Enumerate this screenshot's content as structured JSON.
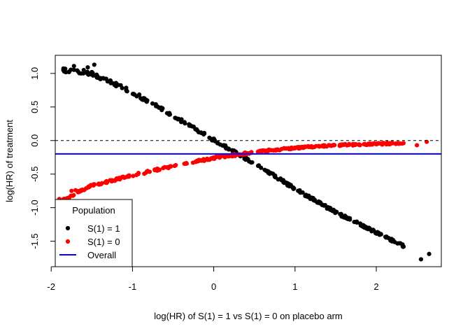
{
  "chart_data": {
    "type": "scatter",
    "title": "",
    "xlabel": "log(HR) of S(1) = 1 vs S(1) = 0 on placebo arm",
    "ylabel": "log(HR) of treatment",
    "xlim": [
      -1.95,
      2.8
    ],
    "ylim": [
      -1.88,
      1.27
    ],
    "x_ticks": [
      -2,
      -1,
      0,
      1,
      2
    ],
    "x_tick_labels": [
      "-2",
      "-1",
      "0",
      "1",
      "2"
    ],
    "y_ticks": [
      -1.5,
      -1.0,
      -0.5,
      0.0,
      0.5,
      1.0
    ],
    "y_tick_labels": [
      "-1.5",
      "-1.0",
      "-0.5",
      "0.0",
      "0.5",
      "1.0"
    ],
    "grid": false,
    "legend": {
      "title": "Population",
      "placement": "bottom-left",
      "entries": [
        "S(1) = 1",
        "S(1) = 0",
        "Overall"
      ]
    },
    "series": [
      {
        "name": "S(1) = 1",
        "color": "#000000",
        "marker": "point",
        "trend_x": [
          -1.85,
          -1.5,
          -1.0,
          -0.5,
          0.0,
          0.3,
          0.5,
          1.0,
          1.5,
          2.0,
          2.35
        ],
        "trend_y": [
          1.05,
          1.0,
          0.72,
          0.37,
          0.01,
          -0.2,
          -0.34,
          -0.72,
          -1.07,
          -1.37,
          -1.58
        ],
        "x": [
          -1.85,
          -1.78,
          -1.72,
          -1.67,
          -1.6,
          -1.55,
          -1.5,
          -1.47,
          2.55,
          2.65
        ],
        "y": [
          1.05,
          1.02,
          1.11,
          1.03,
          1.05,
          1.09,
          1.02,
          1.13,
          -1.77,
          -1.69
        ]
      },
      {
        "name": "S(1) = 0",
        "color": "#ff0000",
        "marker": "point",
        "trend_x": [
          -1.85,
          -1.5,
          -1.0,
          -0.5,
          0.0,
          0.3,
          0.5,
          1.0,
          1.5,
          2.0,
          2.35
        ],
        "trend_y": [
          -0.88,
          -0.67,
          -0.52,
          -0.38,
          -0.26,
          -0.21,
          -0.17,
          -0.11,
          -0.07,
          -0.05,
          -0.04
        ],
        "x": [
          -1.9,
          -1.82,
          -1.75,
          -1.7,
          2.5,
          2.62
        ],
        "y": [
          -0.87,
          -0.87,
          -0.75,
          -0.74,
          -0.07,
          -0.02
        ]
      }
    ],
    "reference_lines": [
      {
        "name": "Overall",
        "orientation": "horizontal",
        "y": -0.2,
        "color": "#0000ff",
        "style": "solid"
      },
      {
        "orientation": "horizontal",
        "y": 0.0,
        "color": "#000000",
        "style": "dashed"
      }
    ]
  }
}
